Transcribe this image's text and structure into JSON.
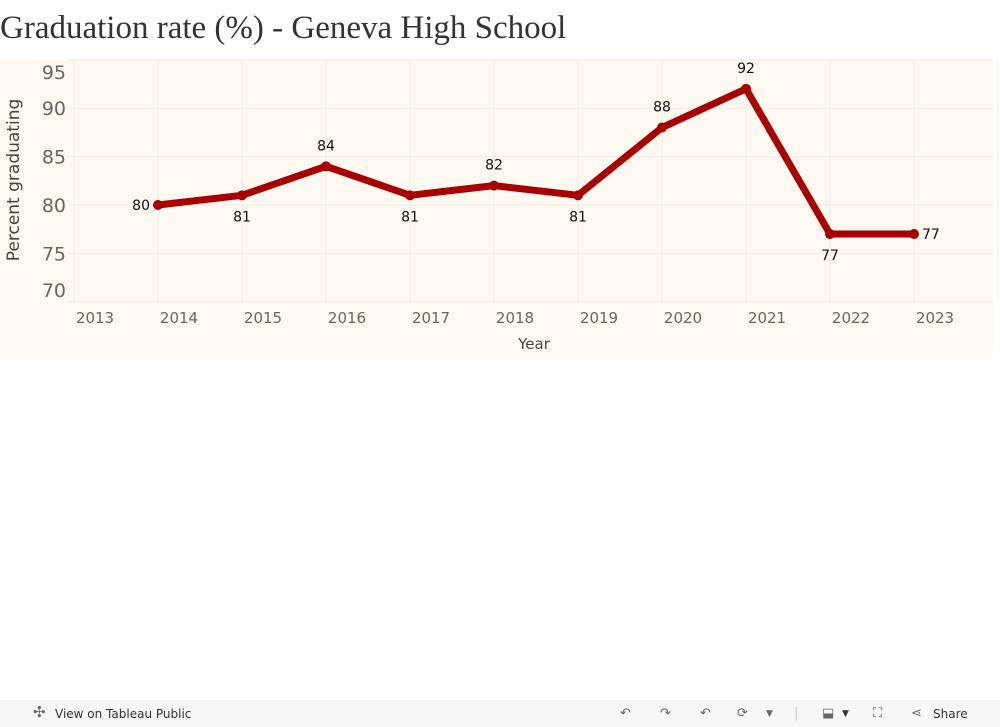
{
  "title": "Graduation rate (%) - Geneva High School",
  "chart_data": {
    "type": "line",
    "title": "Graduation rate (%) - Geneva High School",
    "xlabel": "Year",
    "ylabel": "Percent graduating",
    "x": [
      2014,
      2015,
      2016,
      2017,
      2018,
      2019,
      2020,
      2021,
      2022,
      2023
    ],
    "values": [
      80,
      81,
      84,
      81,
      82,
      81,
      88,
      92,
      77,
      77
    ],
    "label_pos": [
      "left",
      "below",
      "above",
      "below",
      "above",
      "below",
      "above",
      "above",
      "below",
      "right"
    ],
    "xticks": [
      2013,
      2014,
      2015,
      2016,
      2017,
      2018,
      2019,
      2020,
      2021,
      2022,
      2023,
      2024
    ],
    "yticks": [
      70,
      75,
      80,
      85,
      90,
      95
    ],
    "xlim": [
      2013,
      2024
    ],
    "ylim": [
      70,
      96
    ],
    "grid": true,
    "line_color": "#a80000",
    "background": "#fdf8f0"
  },
  "toolbar": {
    "view_label": "View on Tableau Public",
    "share_label": "Share"
  }
}
